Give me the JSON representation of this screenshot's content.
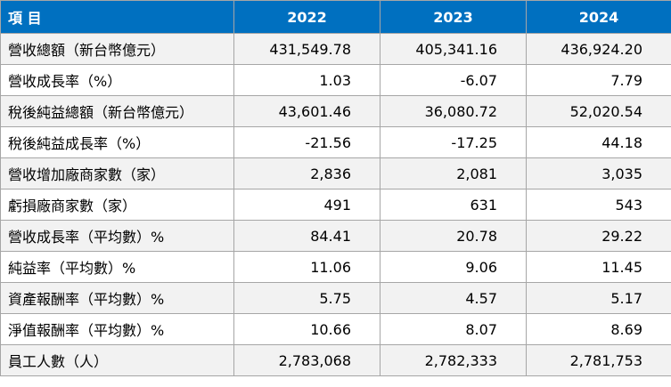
{
  "table": {
    "header": [
      "項 目",
      "2022",
      "2023",
      "2024"
    ],
    "rows": [
      {
        "label": "營收總額（新台幣億元）",
        "values": [
          "431,549.78",
          "405,341.16",
          "436,924.20"
        ]
      },
      {
        "label": "營收成長率（%）",
        "values": [
          "1.03",
          "-6.07",
          "7.79"
        ]
      },
      {
        "label": "稅後純益總額（新台幣億元）",
        "values": [
          "43,601.46",
          "36,080.72",
          "52,020.54"
        ]
      },
      {
        "label": "稅後純益成長率（%）",
        "values": [
          "-21.56",
          "-17.25",
          "44.18"
        ]
      },
      {
        "label": "營收增加廠商家數（家）",
        "values": [
          "2,836",
          "2,081",
          "3,035"
        ]
      },
      {
        "label": "虧損廠商家數（家）",
        "values": [
          "491",
          "631",
          "543"
        ]
      },
      {
        "label": "營收成長率（平均數）%",
        "values": [
          "84.41",
          "20.78",
          "29.22"
        ]
      },
      {
        "label": "純益率（平均數）%",
        "values": [
          "11.06",
          "9.06",
          "11.45"
        ]
      },
      {
        "label": "資產報酬率（平均數）%",
        "values": [
          "5.75",
          "4.57",
          "5.17"
        ]
      },
      {
        "label": "淨值報酬率（平均數）%",
        "values": [
          "10.66",
          "8.07",
          "8.69"
        ]
      },
      {
        "label": "員工人數（人）",
        "values": [
          "2,783,068",
          "2,782,333",
          "2,781,753"
        ]
      }
    ]
  },
  "colors": {
    "header_bg": "#0070c0",
    "header_text": "#ffffff",
    "row_alt_bg": "#f2f2f2",
    "border": "#a6a6a6"
  }
}
